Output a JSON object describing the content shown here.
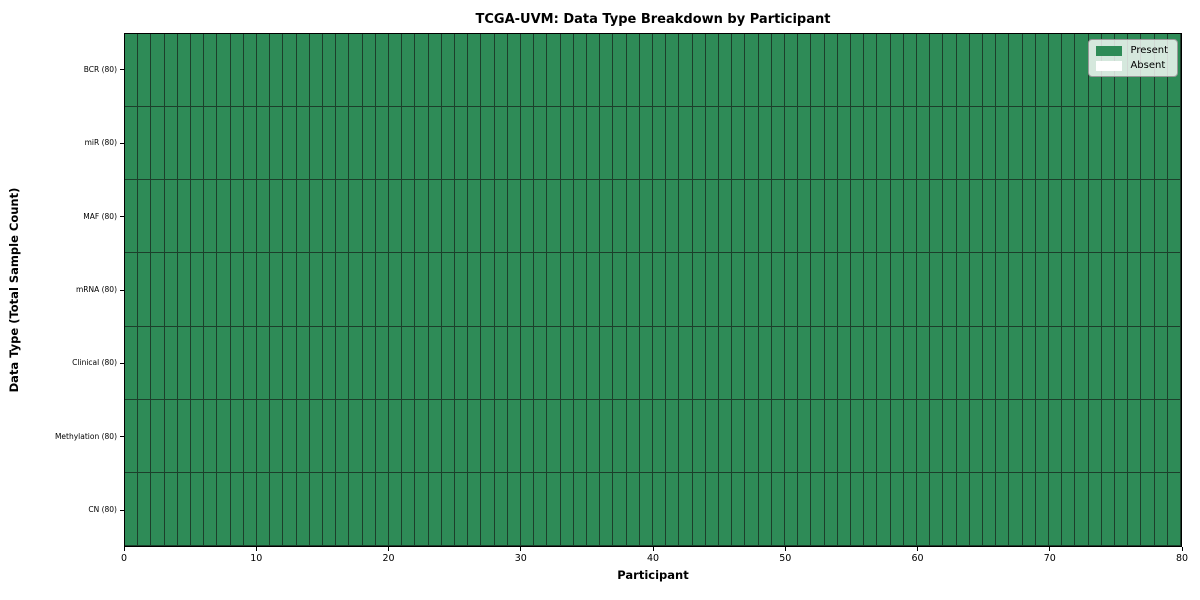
{
  "chart_data": {
    "type": "heatmap",
    "title": "TCGA-UVM: Data Type Breakdown by Participant",
    "xlabel": "Participant",
    "ylabel": "Data Type (Total Sample Count)",
    "xlim": [
      0,
      80
    ],
    "x_ticks": [
      0,
      10,
      20,
      30,
      40,
      50,
      60,
      70,
      80
    ],
    "n_participants": 80,
    "grid": true,
    "rows": [
      {
        "label": "BCR (80)",
        "data_type": "BCR",
        "total_sample_count": 80,
        "present_count": 80
      },
      {
        "label": "miR (80)",
        "data_type": "miR",
        "total_sample_count": 80,
        "present_count": 80
      },
      {
        "label": "MAF (80)",
        "data_type": "MAF",
        "total_sample_count": 80,
        "present_count": 80
      },
      {
        "label": "mRNA (80)",
        "data_type": "mRNA",
        "total_sample_count": 80,
        "present_count": 80
      },
      {
        "label": "Clinical (80)",
        "data_type": "Clinical",
        "total_sample_count": 80,
        "present_count": 80
      },
      {
        "label": "Methylation (80)",
        "data_type": "Methylation",
        "total_sample_count": 80,
        "present_count": 80
      },
      {
        "label": "CN (80)",
        "data_type": "CN",
        "total_sample_count": 80,
        "present_count": 80
      }
    ],
    "legend": {
      "position": "upper right",
      "entries": [
        {
          "label": "Present",
          "color": "#2e8b57"
        },
        {
          "label": "Absent",
          "color": "#ffffff"
        }
      ]
    },
    "colors": {
      "present": "#2e8b57",
      "absent": "#ffffff",
      "cell_border": "#1c3f2b",
      "axis": "#000000"
    }
  }
}
